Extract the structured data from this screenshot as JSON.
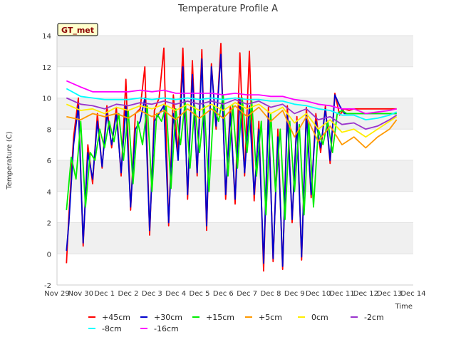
{
  "chart_data": {
    "type": "line",
    "title": "Temperature Profile A",
    "xlabel": "Time",
    "ylabel": "Temperature (C)",
    "badge": "GT_met",
    "ylim": [
      -2,
      14
    ],
    "yticks": [
      -2,
      0,
      2,
      4,
      6,
      8,
      10,
      12,
      14
    ],
    "xlim": [
      0,
      15
    ],
    "xticks": [
      {
        "day": 0,
        "label": "Nov 29"
      },
      {
        "day": 1,
        "label": "Nov 30"
      },
      {
        "day": 2,
        "label": "Dec 1"
      },
      {
        "day": 3,
        "label": "Dec 2"
      },
      {
        "day": 4,
        "label": "Dec 3"
      },
      {
        "day": 5,
        "label": "Dec 4"
      },
      {
        "day": 6,
        "label": "Dec 5"
      },
      {
        "day": 7,
        "label": "Dec 6"
      },
      {
        "day": 8,
        "label": "Dec 7"
      },
      {
        "day": 9,
        "label": "Dec 8"
      },
      {
        "day": 10,
        "label": "Dec 9"
      },
      {
        "day": 11,
        "label": "Dec 10"
      },
      {
        "day": 12,
        "label": "Dec 11"
      },
      {
        "day": 13,
        "label": "Dec 12"
      },
      {
        "day": 14,
        "label": "Dec 13"
      },
      {
        "day": 15,
        "label": "Dec 14"
      }
    ],
    "grid": "alternating horizontal bands",
    "legend_position": "bottom",
    "series": [
      {
        "name": "+45cm",
        "color": "#ff0000",
        "x": [
          0.4,
          0.5,
          0.7,
          0.9,
          1.1,
          1.3,
          1.5,
          1.7,
          1.9,
          2.1,
          2.3,
          2.5,
          2.7,
          2.9,
          3.1,
          3.3,
          3.5,
          3.7,
          3.9,
          4.1,
          4.3,
          4.5,
          4.7,
          4.9,
          5.1,
          5.3,
          5.5,
          5.7,
          5.9,
          6.1,
          6.3,
          6.5,
          6.7,
          6.9,
          7.1,
          7.3,
          7.5,
          7.7,
          7.9,
          8.1,
          8.3,
          8.5,
          8.7,
          8.9,
          9.1,
          9.3,
          9.5,
          9.7,
          9.9,
          10.1,
          10.3,
          10.5,
          10.7,
          10.9,
          11.1,
          11.3,
          11.5,
          11.7,
          11.9,
          12.1,
          12.3,
          12.5,
          12.7,
          12.9,
          13.1,
          13.3,
          13.5,
          13.7,
          13.9,
          14.1,
          14.3
        ],
        "y": [
          -0.6,
          2.5,
          7.5,
          10.0,
          0.5,
          7.0,
          4.5,
          9.0,
          5.5,
          9.5,
          6.8,
          9.4,
          5.0,
          11.2,
          2.8,
          9.0,
          9.3,
          12.0,
          1.2,
          9.2,
          10.0,
          13.2,
          1.8,
          10.2,
          6.5,
          13.2,
          3.5,
          12.4,
          5.0,
          13.1,
          1.5,
          12.2,
          8.0,
          13.5,
          3.5,
          9.5,
          3.2,
          12.9,
          5.0,
          13.0,
          3.4,
          8.5,
          -1.1,
          9.4,
          -0.5,
          8.0,
          -1.0,
          9.5,
          2.0,
          8.8,
          -0.4,
          9.4,
          3.6,
          9.0,
          6.5,
          9.5,
          5.8,
          10.3,
          8.9,
          9.3,
          9.2,
          9.3,
          9.3,
          9.3,
          9.3,
          9.3,
          9.3,
          9.3,
          9.3,
          9.3,
          9.3
        ]
      },
      {
        "name": "+30cm",
        "color": "#0000cc",
        "x": [
          0.4,
          0.5,
          0.7,
          0.9,
          1.1,
          1.3,
          1.5,
          1.7,
          1.9,
          2.1,
          2.3,
          2.5,
          2.7,
          2.9,
          3.1,
          3.3,
          3.5,
          3.7,
          3.9,
          4.1,
          4.3,
          4.5,
          4.7,
          4.9,
          5.1,
          5.3,
          5.5,
          5.7,
          5.9,
          6.1,
          6.3,
          6.5,
          6.7,
          6.9,
          7.1,
          7.3,
          7.5,
          7.7,
          7.9,
          8.1,
          8.3,
          8.5,
          8.7,
          8.9,
          9.1,
          9.3,
          9.5,
          9.7,
          9.9,
          10.1,
          10.3,
          10.5,
          10.7,
          10.9,
          11.1,
          11.3,
          11.5,
          11.7,
          11.9,
          12.1,
          12.3,
          12.5,
          12.7,
          12.9,
          13.1,
          13.3,
          13.5,
          13.7,
          13.9,
          14.1,
          14.3
        ],
        "y": [
          0.2,
          2.0,
          7.0,
          9.5,
          0.7,
          6.5,
          4.8,
          8.5,
          5.6,
          9.0,
          7.0,
          9.0,
          5.2,
          9.5,
          3.0,
          8.0,
          8.5,
          10.0,
          1.5,
          8.5,
          9.0,
          9.5,
          2.0,
          9.0,
          6.0,
          12.0,
          3.8,
          11.5,
          5.2,
          12.5,
          1.8,
          12.0,
          8.2,
          12.8,
          3.8,
          9.0,
          3.5,
          10.0,
          5.2,
          9.5,
          3.8,
          8.0,
          -0.6,
          9.0,
          -0.3,
          7.5,
          -0.8,
          9.0,
          2.2,
          8.5,
          -0.2,
          9.0,
          3.8,
          8.5,
          6.8,
          9.3,
          6.0,
          10.2,
          9.5,
          9.0,
          9.0,
          9.0,
          9.0,
          9.0,
          9.0,
          9.0,
          9.0,
          9.0,
          9.0,
          9.0,
          9.0
        ]
      },
      {
        "name": "+15cm",
        "color": "#00ee00",
        "x": [
          0.4,
          0.6,
          0.8,
          1.0,
          1.2,
          1.4,
          1.6,
          1.8,
          2.0,
          2.2,
          2.4,
          2.6,
          2.8,
          3.0,
          3.2,
          3.4,
          3.6,
          3.8,
          4.0,
          4.2,
          4.4,
          4.6,
          4.8,
          5.0,
          5.2,
          5.4,
          5.6,
          5.8,
          6.0,
          6.2,
          6.4,
          6.6,
          6.8,
          7.0,
          7.2,
          7.4,
          7.6,
          7.8,
          8.0,
          8.2,
          8.4,
          8.6,
          8.8,
          9.0,
          9.2,
          9.4,
          9.6,
          9.8,
          10.0,
          10.2,
          10.4,
          10.6,
          10.8,
          11.0,
          11.2,
          11.4,
          11.6,
          11.8,
          12.0,
          12.2,
          12.4,
          12.6,
          12.8,
          13.0,
          13.2,
          13.4,
          13.6,
          13.8,
          14.0,
          14.2,
          14.3
        ],
        "y": [
          2.8,
          6.2,
          4.8,
          8.5,
          3.0,
          6.5,
          6.0,
          8.0,
          6.8,
          8.5,
          7.2,
          9.0,
          6.0,
          9.2,
          4.5,
          8.5,
          7.0,
          9.5,
          4.0,
          9.0,
          8.5,
          9.5,
          4.2,
          9.3,
          7.0,
          9.8,
          5.5,
          9.5,
          6.5,
          9.5,
          4.0,
          9.5,
          8.5,
          10.2,
          5.0,
          9.5,
          5.5,
          10.0,
          6.5,
          9.8,
          5.0,
          8.5,
          2.5,
          9.0,
          4.0,
          8.0,
          2.2,
          8.5,
          4.0,
          8.3,
          2.5,
          8.5,
          3.0,
          8.0,
          7.0,
          8.5,
          6.5,
          9.0,
          9.2,
          9.0,
          9.0,
          9.0,
          9.0,
          9.0,
          9.0,
          9.0,
          9.0,
          9.0,
          9.0,
          9.0,
          9.0
        ]
      },
      {
        "name": "+5cm",
        "color": "#ff9900",
        "x": [
          0.4,
          1.0,
          1.5,
          2.0,
          2.5,
          3.0,
          3.5,
          4.0,
          4.5,
          5.0,
          5.5,
          6.0,
          6.5,
          7.0,
          7.5,
          8.0,
          8.5,
          9.0,
          9.5,
          10.0,
          10.5,
          11.0,
          11.5,
          12.0,
          12.5,
          13.0,
          13.5,
          14.0,
          14.3
        ],
        "y": [
          8.8,
          8.6,
          9.0,
          8.8,
          9.0,
          8.7,
          9.2,
          8.8,
          9.2,
          8.6,
          9.3,
          8.7,
          9.3,
          8.7,
          9.5,
          8.8,
          9.4,
          8.5,
          9.2,
          7.5,
          8.8,
          7.2,
          8.2,
          7.0,
          7.5,
          6.8,
          7.5,
          8.0,
          8.6
        ]
      },
      {
        "name": "0cm",
        "color": "#ffee00",
        "x": [
          0.4,
          1.0,
          1.5,
          2.0,
          2.5,
          3.0,
          3.5,
          4.0,
          4.5,
          5.0,
          5.5,
          6.0,
          6.5,
          7.0,
          7.5,
          8.0,
          8.5,
          9.0,
          9.5,
          10.0,
          10.5,
          11.0,
          11.5,
          12.0,
          12.5,
          13.0,
          13.5,
          14.0,
          14.3
        ],
        "y": [
          9.6,
          9.2,
          9.3,
          9.0,
          9.4,
          9.2,
          9.5,
          9.3,
          9.6,
          9.2,
          9.6,
          9.2,
          9.6,
          9.2,
          9.7,
          9.3,
          9.6,
          9.0,
          9.4,
          8.4,
          9.0,
          8.0,
          8.6,
          7.8,
          8.0,
          7.5,
          8.0,
          8.5,
          8.8
        ]
      },
      {
        "name": "-2cm",
        "color": "#9933cc",
        "x": [
          0.4,
          1.0,
          1.5,
          2.0,
          2.5,
          3.0,
          3.5,
          4.0,
          4.5,
          5.0,
          5.5,
          6.0,
          6.5,
          7.0,
          7.5,
          8.0,
          8.5,
          9.0,
          9.5,
          10.0,
          10.5,
          11.0,
          11.5,
          12.0,
          12.5,
          13.0,
          13.5,
          14.0,
          14.3
        ],
        "y": [
          10.0,
          9.6,
          9.5,
          9.3,
          9.6,
          9.5,
          9.7,
          9.6,
          9.8,
          9.6,
          9.8,
          9.6,
          9.8,
          9.6,
          9.9,
          9.6,
          9.8,
          9.4,
          9.6,
          9.0,
          9.3,
          8.6,
          8.8,
          8.3,
          8.4,
          8.0,
          8.2,
          8.6,
          8.9
        ]
      },
      {
        "name": "-8cm",
        "color": "#00ffff",
        "x": [
          0.4,
          1.0,
          1.5,
          2.0,
          2.5,
          3.0,
          3.5,
          4.0,
          4.5,
          5.0,
          5.5,
          6.0,
          6.5,
          7.0,
          7.5,
          8.0,
          8.5,
          9.0,
          9.5,
          10.0,
          10.5,
          11.0,
          11.5,
          12.0,
          12.5,
          13.0,
          13.5,
          14.0,
          14.3
        ],
        "y": [
          10.6,
          10.1,
          10.0,
          9.9,
          9.9,
          9.9,
          10.0,
          9.9,
          10.0,
          9.9,
          10.0,
          9.9,
          10.0,
          9.9,
          10.0,
          9.9,
          9.9,
          9.8,
          9.8,
          9.6,
          9.5,
          9.3,
          9.2,
          8.9,
          8.9,
          8.6,
          8.7,
          8.9,
          9.1
        ]
      },
      {
        "name": "-16cm",
        "color": "#ff00ff",
        "x": [
          0.4,
          1.0,
          1.5,
          2.0,
          2.5,
          3.0,
          3.5,
          4.0,
          4.5,
          5.0,
          5.5,
          6.0,
          6.5,
          7.0,
          7.5,
          8.0,
          8.5,
          9.0,
          9.5,
          10.0,
          10.5,
          11.0,
          11.5,
          12.0,
          12.5,
          13.0,
          13.5,
          14.0,
          14.3
        ],
        "y": [
          11.1,
          10.7,
          10.4,
          10.4,
          10.4,
          10.4,
          10.5,
          10.4,
          10.5,
          10.3,
          10.3,
          10.3,
          10.3,
          10.2,
          10.3,
          10.2,
          10.2,
          10.1,
          10.1,
          9.9,
          9.8,
          9.6,
          9.5,
          9.3,
          9.3,
          9.0,
          9.1,
          9.2,
          9.3
        ]
      }
    ]
  }
}
